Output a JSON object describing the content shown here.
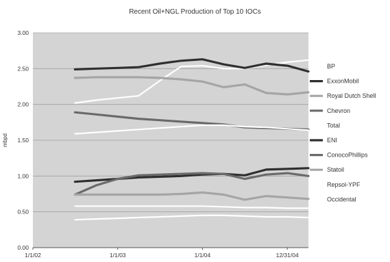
{
  "chart_data": {
    "type": "line",
    "title": "Recent Oil+NGL Production of Top 10 IOCs",
    "xlabel": "",
    "ylabel": "mbpd",
    "ylim": [
      0,
      3
    ],
    "yticks": [
      "0.00",
      "0.50",
      "1.00",
      "1.50",
      "2.00",
      "2.50",
      "3.00"
    ],
    "xlim": [
      "2002-01-01",
      "2005-04-01"
    ],
    "xticks": [
      {
        "date": "2002-01-01",
        "label": "1/1/02"
      },
      {
        "date": "2003-01-01",
        "label": "1/1/03"
      },
      {
        "date": "2004-01-01",
        "label": "1/1/04"
      },
      {
        "date": "2004-12-31",
        "label": "12/31/04"
      }
    ],
    "x": [
      "2002-07-01",
      "2002-10-01",
      "2003-01-01",
      "2003-04-01",
      "2003-07-01",
      "2003-10-01",
      "2004-01-01",
      "2004-04-01",
      "2004-07-01",
      "2004-10-01",
      "2005-01-01",
      "2005-04-01"
    ],
    "grid": true,
    "legend_position": "right",
    "background": "#d4d4d4",
    "gridline_color": "#a0a0a0",
    "series": [
      {
        "name": "BP",
        "color": "#ffffff",
        "width": 2.2,
        "values": [
          2.02,
          2.06,
          2.09,
          2.12,
          2.33,
          2.53,
          2.54,
          2.5,
          2.5,
          2.55,
          2.59,
          2.62
        ]
      },
      {
        "name": "ExxonMobil",
        "color": "#2f2f2f",
        "width": 3.2,
        "values": [
          2.49,
          2.5,
          2.51,
          2.52,
          2.57,
          2.61,
          2.63,
          2.56,
          2.51,
          2.57,
          2.54,
          2.46
        ]
      },
      {
        "name": "Royal Dutch Shell",
        "color": "#a5a5a5",
        "width": 3.2,
        "values": [
          2.37,
          2.38,
          2.38,
          2.38,
          2.37,
          2.35,
          2.32,
          2.24,
          2.28,
          2.16,
          2.14,
          2.17
        ]
      },
      {
        "name": "Chevron",
        "color": "#6a6a6a",
        "width": 3.2,
        "values": [
          1.89,
          1.86,
          1.83,
          1.8,
          1.78,
          1.76,
          1.74,
          1.72,
          1.68,
          1.67,
          1.66,
          1.65
        ]
      },
      {
        "name": "Total",
        "color": "#ffffff",
        "width": 2.2,
        "values": [
          1.59,
          1.61,
          1.63,
          1.65,
          1.67,
          1.69,
          1.71,
          1.71,
          1.69,
          1.68,
          1.66,
          1.64
        ]
      },
      {
        "name": "ENI",
        "color": "#2f2f2f",
        "width": 3.2,
        "values": [
          0.92,
          0.94,
          0.96,
          0.98,
          0.99,
          1.0,
          1.02,
          1.03,
          1.01,
          1.09,
          1.1,
          1.11
        ]
      },
      {
        "name": "ConocoPhillips",
        "color": "#6a6a6a",
        "width": 3.2,
        "values": [
          0.74,
          0.87,
          0.96,
          1.01,
          1.02,
          1.03,
          1.04,
          1.03,
          0.96,
          1.02,
          1.04,
          1.0
        ]
      },
      {
        "name": "Statoil",
        "color": "#a5a5a5",
        "width": 3.2,
        "values": [
          0.74,
          0.74,
          0.74,
          0.74,
          0.74,
          0.75,
          0.77,
          0.74,
          0.67,
          0.72,
          0.7,
          0.68
        ]
      },
      {
        "name": "Repsol-YPF",
        "color": "#ffffff",
        "width": 2.2,
        "values": [
          0.58,
          0.58,
          0.58,
          0.58,
          0.58,
          0.58,
          0.58,
          0.57,
          0.56,
          0.56,
          0.55,
          0.55
        ]
      },
      {
        "name": "Occidental",
        "color": "#ffffff",
        "width": 2.2,
        "values": [
          0.39,
          0.4,
          0.41,
          0.42,
          0.43,
          0.44,
          0.45,
          0.45,
          0.44,
          0.43,
          0.43,
          0.42
        ]
      }
    ]
  }
}
